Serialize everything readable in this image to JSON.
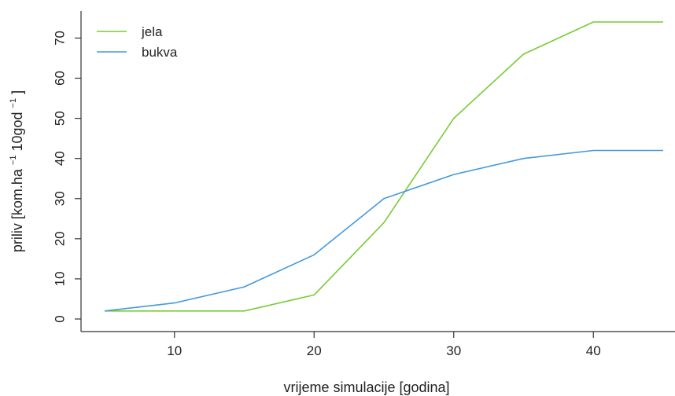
{
  "chart_data": {
    "type": "line",
    "xlabel": "vrijeme simulacije [godina]",
    "ylabel_parts": [
      "priliv [kom.ha",
      "−1",
      "10god",
      "−1",
      "]"
    ],
    "x": [
      5,
      10,
      15,
      20,
      25,
      30,
      35,
      40,
      45
    ],
    "xticks": [
      10,
      20,
      30,
      40
    ],
    "yticks": [
      0,
      10,
      20,
      30,
      40,
      50,
      60,
      70
    ],
    "xlim": [
      5,
      45
    ],
    "ylim": [
      0,
      74
    ],
    "legend_position": "top-left",
    "grid": false,
    "series": [
      {
        "name": "jela",
        "color": "#77cc33",
        "values": [
          2,
          2,
          2,
          6,
          24,
          50,
          66,
          74,
          74
        ]
      },
      {
        "name": "bukva",
        "color": "#4499dd",
        "values": [
          2,
          4,
          8,
          16,
          30,
          36,
          40,
          42,
          42
        ]
      }
    ]
  }
}
